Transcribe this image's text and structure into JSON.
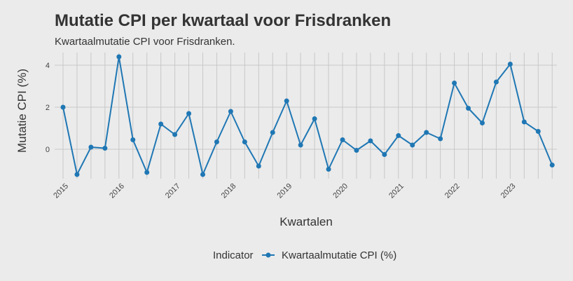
{
  "chart_data": {
    "type": "line",
    "title": "Mutatie CPI per kwartaal voor Frisdranken",
    "subtitle": "Kwartaalmutatie CPI voor Frisdranken.",
    "xlabel": "Kwartalen",
    "ylabel": "Mutatie CPI (%)",
    "ylim": [
      -1.4,
      4.6
    ],
    "y_ticks": [
      0,
      2,
      4
    ],
    "x_tick_labels": [
      "2015",
      "2016",
      "2017",
      "2018",
      "2019",
      "2020",
      "2021",
      "2022",
      "2023"
    ],
    "grid": true,
    "legend_position": "bottom",
    "legend_title": "Indicator",
    "line_color": "#1f77b4",
    "series": [
      {
        "name": "Kwartaalmutatie CPI (%)",
        "x": [
          "2015-Q1",
          "2015-Q2",
          "2015-Q3",
          "2015-Q4",
          "2016-Q1",
          "2016-Q2",
          "2016-Q3",
          "2016-Q4",
          "2017-Q1",
          "2017-Q2",
          "2017-Q3",
          "2017-Q4",
          "2018-Q1",
          "2018-Q2",
          "2018-Q3",
          "2018-Q4",
          "2019-Q1",
          "2019-Q2",
          "2019-Q3",
          "2019-Q4",
          "2020-Q1",
          "2020-Q2",
          "2020-Q3",
          "2020-Q4",
          "2021-Q1",
          "2021-Q2",
          "2021-Q3",
          "2021-Q4",
          "2022-Q1",
          "2022-Q2",
          "2022-Q3",
          "2022-Q4",
          "2023-Q1",
          "2023-Q2",
          "2023-Q3",
          "2023-Q4"
        ],
        "values": [
          2.0,
          -1.2,
          0.1,
          0.05,
          4.4,
          0.45,
          -1.1,
          1.2,
          0.7,
          1.7,
          -1.2,
          0.35,
          1.8,
          0.35,
          -0.8,
          0.8,
          2.3,
          0.2,
          1.45,
          -0.95,
          0.45,
          -0.05,
          0.4,
          -0.25,
          0.65,
          0.2,
          0.8,
          0.5,
          3.15,
          1.95,
          1.25,
          3.2,
          4.05,
          1.3,
          0.85,
          -0.75
        ]
      }
    ]
  }
}
